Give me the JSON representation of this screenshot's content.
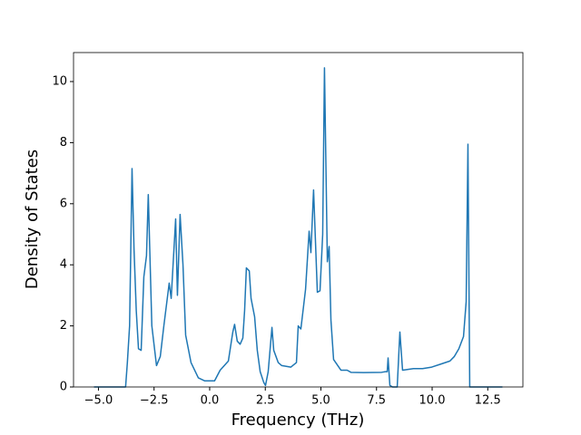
{
  "chart_data": {
    "type": "line",
    "x_label": "Frequency (THz)",
    "y_label": "Density of States",
    "color": "#1f77b4",
    "x": [
      -5.2,
      -3.78,
      -3.7,
      -3.6,
      -3.49,
      -3.4,
      -3.3,
      -3.2,
      -3.08,
      -2.96,
      -2.84,
      -2.76,
      -2.6,
      -2.39,
      -2.22,
      -2.06,
      -1.82,
      -1.73,
      -1.53,
      -1.45,
      -1.33,
      -1.2,
      -1.08,
      -0.84,
      -0.51,
      -0.22,
      0.22,
      0.47,
      0.84,
      1.04,
      1.12,
      1.24,
      1.37,
      1.49,
      1.57,
      1.65,
      1.78,
      1.86,
      2.02,
      2.14,
      2.27,
      2.43,
      2.51,
      2.63,
      2.8,
      2.88,
      3.08,
      3.24,
      3.65,
      3.9,
      3.98,
      4.1,
      4.31,
      4.47,
      4.55,
      4.67,
      4.84,
      4.96,
      5.08,
      5.16,
      5.29,
      5.37,
      5.45,
      5.57,
      5.9,
      6.18,
      6.35,
      6.92,
      7.73,
      7.9,
      7.98,
      8.02,
      8.1,
      8.22,
      8.43,
      8.55,
      8.67,
      9.16,
      9.57,
      9.98,
      10.39,
      10.8,
      11.0,
      11.2,
      11.41,
      11.53,
      11.61,
      11.69,
      13.16
    ],
    "values": [
      0,
      0,
      0.8,
      2.0,
      7.15,
      4.5,
      2.5,
      1.25,
      1.2,
      3.6,
      4.3,
      6.3,
      2.0,
      0.7,
      1.0,
      2.0,
      3.4,
      2.9,
      5.5,
      3.0,
      5.65,
      4.0,
      1.7,
      0.8,
      0.3,
      0.2,
      0.2,
      0.55,
      0.85,
      1.8,
      2.05,
      1.5,
      1.4,
      1.6,
      2.5,
      3.9,
      3.8,
      2.9,
      2.3,
      1.2,
      0.5,
      0.15,
      0.05,
      0.5,
      1.95,
      1.2,
      0.8,
      0.7,
      0.65,
      0.8,
      2.0,
      1.9,
      3.2,
      5.1,
      4.4,
      6.45,
      3.1,
      3.15,
      5.0,
      10.45,
      4.1,
      4.6,
      2.2,
      0.9,
      0.55,
      0.55,
      0.48,
      0.47,
      0.48,
      0.5,
      0.5,
      0.95,
      0.05,
      0,
      0,
      1.8,
      0.55,
      0.6,
      0.6,
      0.65,
      0.75,
      0.85,
      1.0,
      1.25,
      1.65,
      2.8,
      7.95,
      0,
      0
    ],
    "xlim": [
      -6.12,
      14.08
    ],
    "ylim": [
      0,
      10.95
    ],
    "xticks": [
      {
        "value": -5,
        "label": "−5.0"
      },
      {
        "value": -2.5,
        "label": "−2.5"
      },
      {
        "value": 0,
        "label": "0.0"
      },
      {
        "value": 2.5,
        "label": "2.5"
      },
      {
        "value": 5,
        "label": "5.0"
      },
      {
        "value": 7.5,
        "label": "7.5"
      },
      {
        "value": 10,
        "label": "10.0"
      },
      {
        "value": 12.5,
        "label": "12.5"
      }
    ],
    "yticks": [
      0,
      2,
      4,
      6,
      8,
      10
    ]
  }
}
